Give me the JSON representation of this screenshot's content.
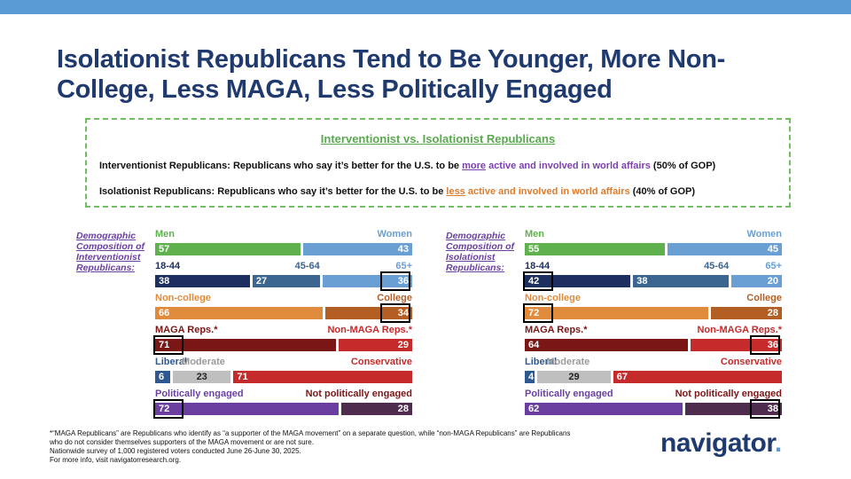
{
  "title": "Isolationist Republicans Tend to Be Younger, More Non-College, Less MAGA, Less Politically Engaged",
  "definitions": {
    "heading": "Interventionist vs. Isolationist Republicans",
    "interventionist": {
      "prefix": "Interventionist Republicans: Republicans who say it’s better for the U.S. to be ",
      "highlight": "more",
      "middle": " active and involved in world affairs",
      "suffix": " (50% of GOP)"
    },
    "isolationist": {
      "prefix": "Isolationist Republicans: Republicans who say it’s better for the U.S. to be ",
      "highlight": "less",
      "middle": " active and involved in world affairs",
      "suffix": " (40% of GOP)"
    }
  },
  "colors": {
    "men": "#5fb14d",
    "women": "#6a9fd4",
    "age1": "#1d2f5e",
    "age2": "#3c6590",
    "age3": "#6a9fd4",
    "noncollege": "#e08a3b",
    "college": "#b35e23",
    "maga": "#7b1616",
    "nonmaga": "#c62b2b",
    "liberal": "#2f5891",
    "moderate": "#bfbfbf",
    "conservative": "#c62b2b",
    "engaged": "#6b3fa0",
    "notengaged": "#4e2c4e",
    "label_purple": "#6b3fa0",
    "label_gray": "#9a9a9a"
  },
  "chart_data": [
    {
      "type": "bar",
      "title": "Demographic Composition of Interventionist Republicans",
      "rows": [
        {
          "group": "gender",
          "segments": [
            {
              "label": "Men",
              "value": 57
            },
            {
              "label": "Women",
              "value": 43
            }
          ],
          "highlight": null
        },
        {
          "group": "age",
          "segments": [
            {
              "label": "18-44",
              "value": 38
            },
            {
              "label": "45-64",
              "value": 27
            },
            {
              "label": "65+",
              "value": 36
            }
          ],
          "highlight": 2
        },
        {
          "group": "education",
          "segments": [
            {
              "label": "Non-college",
              "value": 66
            },
            {
              "label": "College",
              "value": 34
            }
          ],
          "highlight": 1
        },
        {
          "group": "maga",
          "segments": [
            {
              "label": "MAGA Reps.*",
              "value": 71
            },
            {
              "label": "Non-MAGA Reps.*",
              "value": 29
            }
          ],
          "highlight": 0
        },
        {
          "group": "ideology",
          "segments": [
            {
              "label": "Liberal",
              "value": 6
            },
            {
              "label": "Moderate",
              "value": 23
            },
            {
              "label": "Conservative",
              "value": 71
            }
          ],
          "highlight": null
        },
        {
          "group": "engagement",
          "segments": [
            {
              "label": "Politically engaged",
              "value": 72
            },
            {
              "label": "Not politically engaged",
              "value": 28
            }
          ],
          "highlight": 0
        }
      ]
    },
    {
      "type": "bar",
      "title": "Demographic Composition of Isolationist Republicans",
      "rows": [
        {
          "group": "gender",
          "segments": [
            {
              "label": "Men",
              "value": 55
            },
            {
              "label": "Women",
              "value": 45
            }
          ],
          "highlight": null
        },
        {
          "group": "age",
          "segments": [
            {
              "label": "18-44",
              "value": 42
            },
            {
              "label": "45-64",
              "value": 38
            },
            {
              "label": "65+",
              "value": 20
            }
          ],
          "highlight": 0
        },
        {
          "group": "education",
          "segments": [
            {
              "label": "Non-college",
              "value": 72
            },
            {
              "label": "College",
              "value": 28
            }
          ],
          "highlight": 0
        },
        {
          "group": "maga",
          "segments": [
            {
              "label": "MAGA Reps.*",
              "value": 64
            },
            {
              "label": "Non-MAGA Reps.*",
              "value": 36
            }
          ],
          "highlight": 1
        },
        {
          "group": "ideology",
          "segments": [
            {
              "label": "Liberal",
              "value": 4
            },
            {
              "label": "Moderate",
              "value": 29
            },
            {
              "label": "Conservative",
              "value": 67
            }
          ],
          "highlight": null
        },
        {
          "group": "engagement",
          "segments": [
            {
              "label": "Politically engaged",
              "value": 62
            },
            {
              "label": "Not politically engaged",
              "value": 38
            }
          ],
          "highlight": 1
        }
      ]
    }
  ],
  "side_labels": [
    "Demographic Composition of Interventionist Republicans:",
    "Demographic Composition of Isolationist Republicans:"
  ],
  "footnotes": [
    "*“MAGA Republicans” are Republicans who identify as “a supporter of the MAGA movement” on a separate question, while “non-MAGA Republicans” are Republicans who do not consider themselves supporters of the MAGA movement or are not sure.",
    "Nationwide survey of 1,000 registered voters conducted June 26-June 30, 2025.",
    "For more info, visit navigatorresearch.org."
  ],
  "logo": {
    "text": "navigator",
    "dot": "."
  }
}
